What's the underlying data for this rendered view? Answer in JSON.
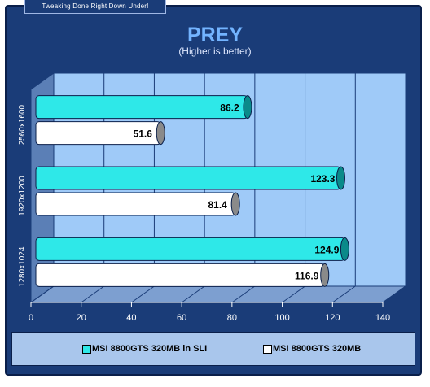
{
  "header": {
    "tagline": "Tweaking Done Right Down Under!"
  },
  "colors": {
    "series1": "#2ee8e8",
    "series2": "#ffffff",
    "plot_back": "#9fcaf8",
    "frame": "#1a3c78"
  },
  "chart_data": {
    "type": "bar",
    "orientation": "horizontal",
    "title": "PREY",
    "subtitle": "(Higher is better)",
    "categories": [
      "2560x1600",
      "1920x1200",
      "1280x1024"
    ],
    "series": [
      {
        "name": "MSI 8800GTS 320MB in SLI",
        "values": [
          86.2,
          123.3,
          124.9
        ]
      },
      {
        "name": "MSI 8800GTS 320MB",
        "values": [
          51.6,
          81.4,
          116.9
        ]
      }
    ],
    "xlim": [
      0,
      140
    ],
    "xticks": [
      "0",
      "20",
      "40",
      "60",
      "80",
      "100",
      "120",
      "140"
    ],
    "grid": true,
    "legend_position": "bottom"
  }
}
